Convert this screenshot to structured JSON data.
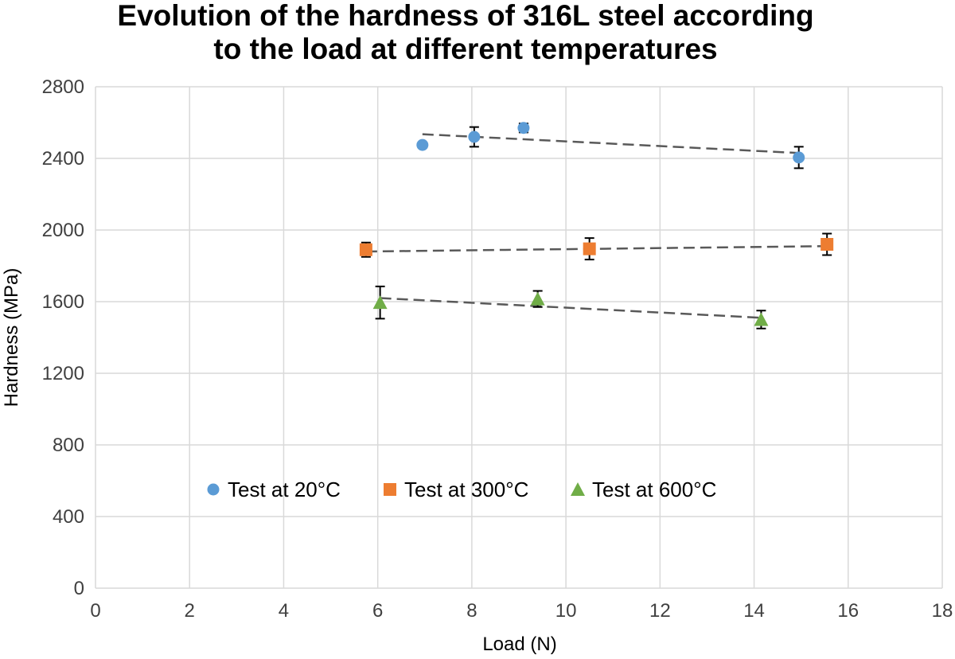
{
  "chart_data": {
    "type": "scatter",
    "title": "Evolution of the hardness of 316L steel according to the load at different temperatures",
    "title_lines": [
      "Evolution of the hardness of 316L steel according",
      "to the load at different temperatures"
    ],
    "xlabel": "Load (N)",
    "ylabel": "Hardness (MPa)",
    "xlim": [
      0,
      18
    ],
    "ylim": [
      0,
      2800
    ],
    "xticks": [
      0,
      2,
      4,
      6,
      8,
      10,
      12,
      14,
      16,
      18
    ],
    "yticks": [
      0,
      400,
      800,
      1200,
      1600,
      2000,
      2400,
      2800
    ],
    "grid": true,
    "legend_position": "inside-lower",
    "series": [
      {
        "name": "Test at 20°C",
        "marker": "circle",
        "color": "#5b9bd5",
        "x": [
          6.95,
          8.05,
          9.1,
          14.95
        ],
        "y": [
          2475,
          2520,
          2570,
          2405
        ],
        "err": [
          0,
          55,
          25,
          60
        ],
        "trend": {
          "x": [
            6.95,
            14.95
          ],
          "y": [
            2535,
            2430
          ]
        }
      },
      {
        "name": "Test at 300°C",
        "marker": "square",
        "color": "#ed7d31",
        "x": [
          5.75,
          10.5,
          15.55
        ],
        "y": [
          1890,
          1895,
          1920
        ],
        "err": [
          40,
          60,
          60
        ],
        "trend": {
          "x": [
            5.75,
            15.55
          ],
          "y": [
            1880,
            1910
          ]
        }
      },
      {
        "name": "Test at 600°C",
        "marker": "triangle",
        "color": "#70ad47",
        "x": [
          6.05,
          9.4,
          14.15
        ],
        "y": [
          1595,
          1615,
          1500
        ],
        "err": [
          90,
          45,
          50
        ],
        "trend": {
          "x": [
            6.05,
            14.15
          ],
          "y": [
            1620,
            1510
          ]
        }
      }
    ]
  }
}
